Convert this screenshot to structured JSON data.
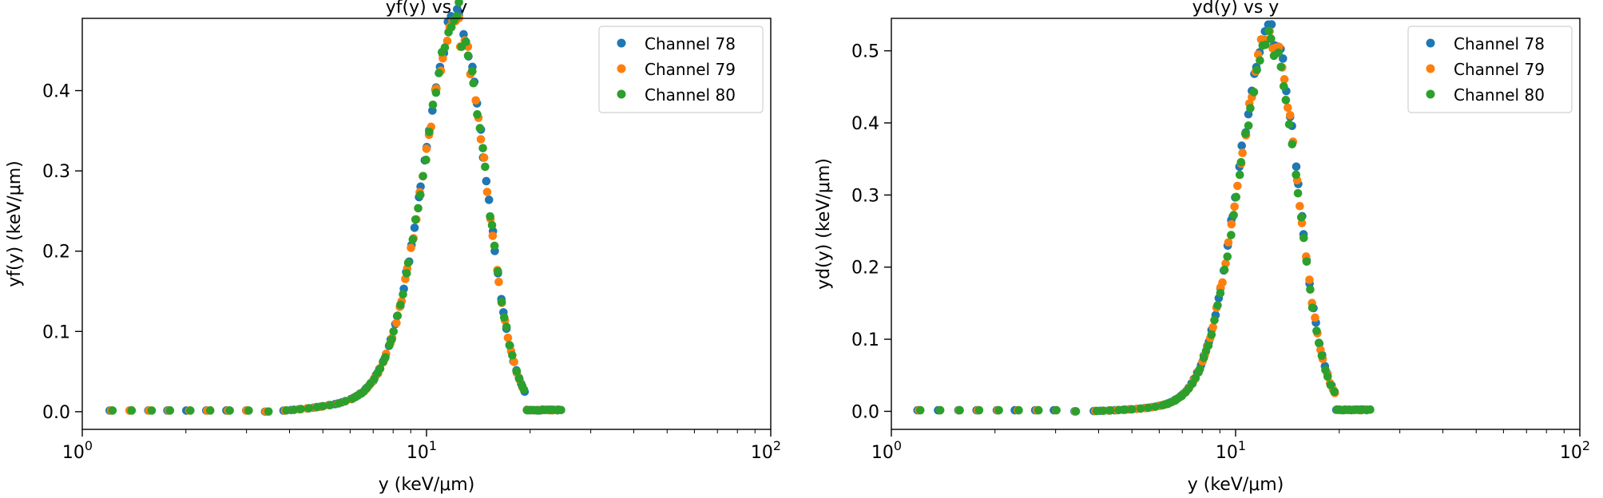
{
  "colors": {
    "channel_78": "#1f77b4",
    "channel_79": "#ff7f0e",
    "channel_80": "#2ca02c"
  },
  "chart_data": [
    {
      "type": "scatter",
      "title": "yf(y) vs y",
      "xlabel": "y (keV/μm)",
      "ylabel": "yf(y) (keV/μm)",
      "xscale": "log",
      "xlim": [
        1,
        100
      ],
      "ylim": [
        -0.022,
        0.49
      ],
      "xticks": [
        {
          "value": 1,
          "base": "10",
          "exp": "0"
        },
        {
          "value": 10,
          "base": "10",
          "exp": "1"
        },
        {
          "value": 100,
          "base": "10",
          "exp": "2"
        }
      ],
      "yticks": [
        {
          "value": 0.0,
          "label": "0.0"
        },
        {
          "value": 0.1,
          "label": "0.1"
        },
        {
          "value": 0.2,
          "label": "0.2"
        },
        {
          "value": 0.3,
          "label": "0.3"
        },
        {
          "value": 0.4,
          "label": "0.4"
        }
      ],
      "legend_position": "top-right",
      "grid": false,
      "peak": {
        "x": 12.5,
        "y": 0.468,
        "width": 0.1
      },
      "series": [
        {
          "name": "Channel 78",
          "color_key": "channel_78",
          "peak_y": 0.47
        },
        {
          "name": "Channel 79",
          "color_key": "channel_79",
          "peak_y": 0.465
        },
        {
          "name": "Channel 80",
          "color_key": "channel_80",
          "peak_y": 0.467
        }
      ]
    },
    {
      "type": "scatter",
      "title": "yd(y) vs y",
      "xlabel": "y (keV/μm)",
      "ylabel": "yd(y) (keV/μm)",
      "xscale": "log",
      "xlim": [
        1,
        100
      ],
      "ylim": [
        -0.025,
        0.545
      ],
      "xticks": [
        {
          "value": 1,
          "base": "10",
          "exp": "0"
        },
        {
          "value": 10,
          "base": "10",
          "exp": "1"
        },
        {
          "value": 100,
          "base": "10",
          "exp": "2"
        }
      ],
      "yticks": [
        {
          "value": 0.0,
          "label": "0.0"
        },
        {
          "value": 0.1,
          "label": "0.1"
        },
        {
          "value": 0.2,
          "label": "0.2"
        },
        {
          "value": 0.3,
          "label": "0.3"
        },
        {
          "value": 0.4,
          "label": "0.4"
        },
        {
          "value": 0.5,
          "label": "0.5"
        }
      ],
      "legend_position": "top-right",
      "grid": false,
      "peak": {
        "x": 12.8,
        "y": 0.51,
        "width": 0.095
      },
      "series": [
        {
          "name": "Channel 78",
          "color_key": "channel_78",
          "peak_y": 0.52
        },
        {
          "name": "Channel 79",
          "color_key": "channel_79",
          "peak_y": 0.51
        },
        {
          "name": "Channel 80",
          "color_key": "channel_80",
          "peak_y": 0.5
        }
      ]
    }
  ]
}
